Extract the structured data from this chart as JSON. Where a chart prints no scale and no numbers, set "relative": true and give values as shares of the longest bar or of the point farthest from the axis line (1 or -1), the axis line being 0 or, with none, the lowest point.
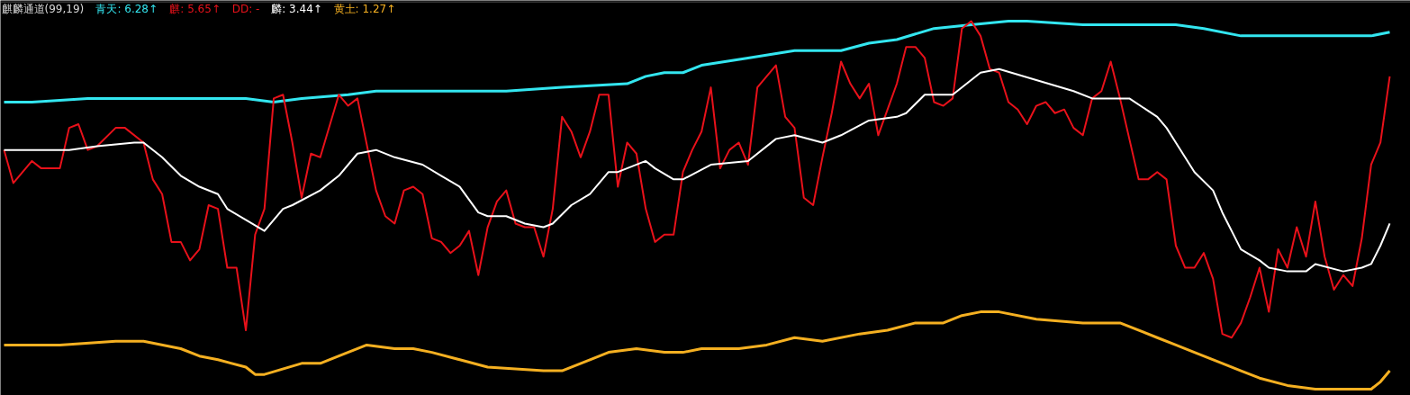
{
  "chart_data": {
    "type": "line",
    "title": "麒麟通道(99,19)",
    "relative": true,
    "marker": "none",
    "line_style": "solid",
    "categories": [
      null,
      null,
      null,
      null,
      null,
      null,
      null,
      null,
      null,
      null,
      null,
      null,
      null,
      null,
      null,
      null,
      null,
      null,
      null,
      null,
      null,
      null,
      null,
      null,
      null,
      null,
      null,
      null,
      null,
      null,
      null,
      null,
      null,
      null,
      null,
      null,
      null,
      null,
      null,
      null,
      null,
      null,
      null,
      null,
      null,
      null,
      null,
      null,
      null,
      null,
      null,
      null,
      null,
      null,
      null,
      null,
      null,
      null,
      null,
      null,
      null,
      null,
      null,
      null,
      null,
      null,
      null,
      null,
      null,
      null,
      null,
      null,
      null,
      null,
      null,
      null,
      null,
      null,
      null,
      null,
      null,
      null,
      null,
      null,
      null,
      null,
      null,
      null,
      null,
      null,
      null,
      null,
      null,
      null,
      null,
      null,
      null,
      null,
      null,
      null,
      null,
      null,
      null,
      null,
      null,
      null,
      null,
      null,
      null,
      null,
      null,
      null,
      null,
      null,
      null,
      null,
      null,
      null,
      null,
      null,
      null,
      null,
      null,
      null,
      null,
      null,
      null,
      null,
      null,
      null,
      null,
      null,
      null,
      null,
      null,
      null,
      null,
      null,
      null,
      null,
      null,
      null,
      null,
      null,
      null,
      null,
      null,
      null,
      null,
      null
    ],
    "annotations": [
      ": 6.28↑",
      ": 5.65↑",
      ": -",
      ": 3.44↑",
      ": 1.27↑"
    ],
    "series": [
      {
        "name": "青天",
        "color": "#33e6f0",
        "values": [
          0.78,
          null,
          null,
          0.78,
          null,
          null,
          null,
          null,
          null,
          0.79,
          null,
          null,
          null,
          null,
          0.79,
          null,
          null,
          null,
          0.79,
          null,
          null,
          null,
          0.79,
          null,
          null,
          null,
          0.79,
          null,
          null,
          0.78,
          null,
          null,
          0.79,
          null,
          null,
          null,
          null,
          0.8,
          null,
          null,
          0.81,
          null,
          null,
          null,
          0.81,
          null,
          null,
          null,
          null,
          null,
          null,
          0.81,
          null,
          null,
          0.81,
          null,
          null,
          null,
          null,
          null,
          0.82,
          null,
          null,
          null,
          null,
          null,
          null,
          0.83,
          null,
          0.85,
          null,
          0.86,
          null,
          0.86,
          null,
          0.88,
          null,
          null,
          null,
          null,
          0.9,
          null,
          null,
          null,
          null,
          0.92,
          null,
          null,
          null,
          null,
          0.92,
          null,
          null,
          0.94,
          null,
          null,
          0.95,
          null,
          null,
          null,
          0.98,
          null,
          null,
          null,
          0.99,
          null,
          null,
          null,
          1.0,
          null,
          1.0,
          null,
          null,
          null,
          null,
          null,
          0.99,
          null,
          null,
          null,
          0.99,
          null,
          null,
          0.99,
          null,
          null,
          0.99,
          null,
          null,
          0.98,
          null,
          null,
          null,
          0.96,
          null,
          0.96,
          null,
          null,
          null,
          0.96,
          null,
          null,
          null,
          0.96,
          null,
          null,
          null,
          0.96,
          null,
          0.97
        ]
      },
      {
        "name": "麒",
        "color": "#e8111a",
        "values": [
          0.65,
          0.56,
          null,
          0.62,
          0.6,
          null,
          0.6,
          0.71,
          0.72,
          0.65,
          0.66,
          null,
          0.71,
          0.71,
          null,
          0.67,
          0.57,
          0.53,
          0.4,
          0.4,
          0.35,
          0.38,
          0.5,
          0.49,
          0.33,
          0.33,
          0.16,
          0.42,
          0.49,
          0.79,
          0.8,
          0.67,
          0.52,
          0.64,
          0.63,
          null,
          0.8,
          0.77,
          0.79,
          null,
          0.54,
          0.47,
          0.45,
          0.54,
          0.55,
          0.53,
          0.41,
          0.4,
          0.37,
          0.39,
          0.43,
          0.31,
          0.44,
          0.51,
          0.54,
          0.45,
          0.44,
          0.44,
          0.36,
          0.49,
          0.74,
          0.7,
          0.63,
          0.7,
          0.8,
          0.8,
          0.55,
          0.67,
          0.64,
          0.49,
          0.4,
          0.42,
          0.42,
          0.59,
          0.65,
          0.7,
          0.82,
          0.6,
          0.65,
          0.67,
          0.61,
          0.82,
          0.85,
          0.88,
          0.74,
          0.71,
          0.52,
          0.5,
          0.63,
          0.75,
          0.89,
          0.83,
          0.79,
          0.83,
          0.69,
          0.76,
          0.83,
          0.93,
          0.93,
          0.9,
          0.78,
          0.77,
          0.79,
          0.98,
          1.0,
          0.96,
          0.87,
          0.86,
          0.78,
          0.76,
          0.72,
          0.77,
          0.78,
          0.75,
          0.76,
          0.71,
          0.69,
          0.79,
          0.81,
          0.89,
          0.79,
          0.68,
          0.57,
          0.57,
          0.59,
          0.57,
          0.39,
          0.33,
          0.33,
          0.37,
          0.3,
          0.15,
          0.14,
          0.18,
          0.25,
          0.33,
          0.21,
          0.38,
          0.33,
          0.44,
          0.36,
          0.51,
          0.36,
          0.27,
          0.31,
          0.28,
          0.41,
          0.61,
          0.67,
          0.85
        ]
      },
      {
        "name": "DD",
        "color": "#e8111a",
        "values": [
          null,
          null,
          null,
          null,
          null,
          null,
          null,
          null,
          null,
          null,
          null,
          null,
          null,
          null,
          null,
          null,
          null,
          null,
          null,
          null,
          null,
          null,
          null,
          null,
          null,
          null,
          null,
          null,
          null,
          null,
          null,
          null,
          null,
          null,
          null,
          null,
          null,
          null,
          null,
          null,
          null,
          null,
          null,
          null,
          null,
          null,
          null,
          null,
          null,
          null,
          null,
          null,
          null,
          null,
          null,
          null,
          null,
          null,
          null,
          null,
          null,
          null,
          null,
          null,
          null,
          null,
          null,
          null,
          null,
          null,
          null,
          null,
          null,
          null,
          null,
          null,
          null,
          null,
          null,
          null,
          null,
          null,
          null,
          null,
          null,
          null,
          null,
          null,
          null,
          null,
          null,
          null,
          null,
          null,
          null,
          null,
          null,
          null,
          null,
          null,
          null,
          null,
          null,
          null,
          null,
          null,
          null,
          null,
          null,
          null,
          null,
          null,
          null,
          null,
          null,
          null,
          null,
          null,
          null,
          null,
          null,
          null,
          null,
          null,
          null,
          null,
          null,
          null,
          null,
          null,
          null,
          null,
          null,
          null,
          null,
          null,
          null,
          null,
          null,
          null,
          null,
          null,
          null,
          null,
          null,
          null,
          null,
          null,
          null,
          null
        ]
      },
      {
        "name": "麟",
        "color": "#ffffff",
        "values": [
          0.65,
          null,
          null,
          null,
          0.65,
          null,
          null,
          0.65,
          null,
          null,
          0.66,
          null,
          null,
          null,
          0.67,
          0.67,
          null,
          0.63,
          null,
          0.58,
          null,
          0.55,
          null,
          0.53,
          0.49,
          null,
          0.46,
          null,
          0.43,
          null,
          0.49,
          0.5,
          null,
          null,
          0.54,
          null,
          0.58,
          null,
          0.64,
          null,
          0.65,
          null,
          0.63,
          null,
          null,
          0.61,
          null,
          0.58,
          null,
          0.55,
          null,
          0.48,
          0.47,
          null,
          0.47,
          null,
          0.45,
          null,
          0.44,
          0.45,
          null,
          0.5,
          null,
          0.53,
          null,
          0.59,
          0.59,
          null,
          null,
          0.62,
          0.6,
          null,
          0.57,
          0.57,
          null,
          null,
          0.61,
          null,
          null,
          null,
          0.62,
          null,
          null,
          0.68,
          null,
          0.69,
          null,
          null,
          0.67,
          null,
          0.69,
          null,
          null,
          0.73,
          null,
          null,
          0.74,
          0.75,
          null,
          0.8,
          null,
          null,
          0.8,
          null,
          null,
          0.86,
          null,
          0.87,
          null,
          null,
          null,
          0.84,
          null,
          null,
          null,
          0.81,
          null,
          0.79,
          null,
          0.79,
          null,
          0.79,
          null,
          null,
          0.74,
          0.71,
          0.67,
          null,
          0.59,
          null,
          0.54,
          0.48,
          0.43,
          0.38,
          null,
          0.35,
          0.33,
          null,
          0.32,
          null,
          0.32,
          0.34,
          null,
          null,
          0.32,
          null,
          0.33,
          0.34,
          0.39,
          0.45
        ]
      },
      {
        "name": "黄土",
        "color": "#f5b021",
        "values": [
          0.12,
          null,
          null,
          null,
          null,
          null,
          0.12,
          null,
          null,
          null,
          null,
          null,
          0.13,
          null,
          null,
          0.13,
          null,
          null,
          null,
          0.11,
          null,
          0.09,
          null,
          0.08,
          null,
          null,
          0.06,
          0.04,
          0.04,
          null,
          null,
          null,
          0.07,
          null,
          0.07,
          null,
          0.09,
          null,
          null,
          0.12,
          null,
          null,
          0.11,
          null,
          0.11,
          null,
          0.1,
          null,
          null,
          0.08,
          null,
          null,
          0.06,
          null,
          null,
          null,
          null,
          null,
          0.05,
          null,
          0.05,
          null,
          null,
          0.08,
          null,
          0.1,
          null,
          null,
          0.11,
          null,
          null,
          0.1,
          null,
          0.1,
          null,
          0.11,
          null,
          null,
          null,
          0.11,
          null,
          null,
          0.12,
          null,
          null,
          0.14,
          null,
          null,
          0.13,
          null,
          null,
          null,
          0.15,
          null,
          null,
          0.16,
          null,
          null,
          0.18,
          null,
          null,
          0.18,
          null,
          0.2,
          null,
          0.21,
          null,
          0.21,
          null,
          null,
          null,
          0.19,
          null,
          null,
          null,
          null,
          0.18,
          null,
          null,
          null,
          0.18,
          null,
          null,
          null,
          0.14,
          null,
          0.12,
          null,
          0.1,
          null,
          null,
          0.07,
          null,
          0.05,
          null,
          0.03,
          null,
          null,
          0.01,
          null,
          null,
          0.0,
          null,
          null,
          null,
          0.0,
          null,
          0.0,
          0.02,
          0.05
        ]
      }
    ]
  }
}
